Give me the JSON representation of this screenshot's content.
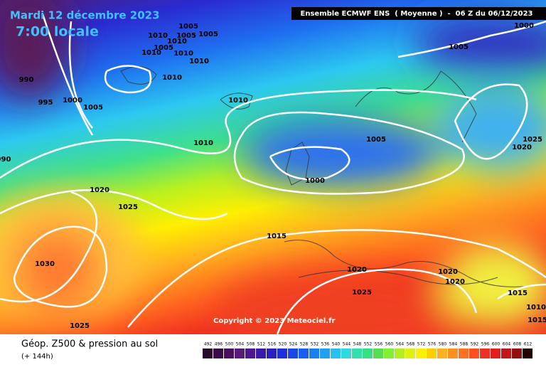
{
  "header": {
    "date": "Mardi 12 décembre 2023",
    "time": "7:00 locale",
    "model": "Ensemble ECMWF ENS  ( Moyenne )  -  06 Z du 06/12/2023"
  },
  "isobar_labels": [
    1005,
    1010,
    1005,
    1005,
    1010,
    1005,
    1010,
    1010,
    1010,
    1010,
    990,
    995,
    1000,
    1005,
    1010,
    1000,
    1005,
    1005,
    1025,
    1020,
    1010,
    1000,
    990,
    1020,
    1025,
    1015,
    1030,
    1020,
    1020,
    1020,
    1025,
    1015,
    1010,
    1015,
    1025
  ],
  "copyright": "Copyright © 2023 Meteociel.fr",
  "footer": {
    "title": "Géop. Z500 & pression au sol",
    "subtitle": "(+ 144h)"
  },
  "legend": {
    "ticks": [
      492,
      496,
      500,
      504,
      508,
      512,
      516,
      520,
      524,
      528,
      532,
      536,
      540,
      544,
      548,
      552,
      556,
      560,
      564,
      568,
      572,
      576,
      580,
      584,
      588,
      592,
      596,
      600,
      604,
      608,
      612
    ]
  }
}
